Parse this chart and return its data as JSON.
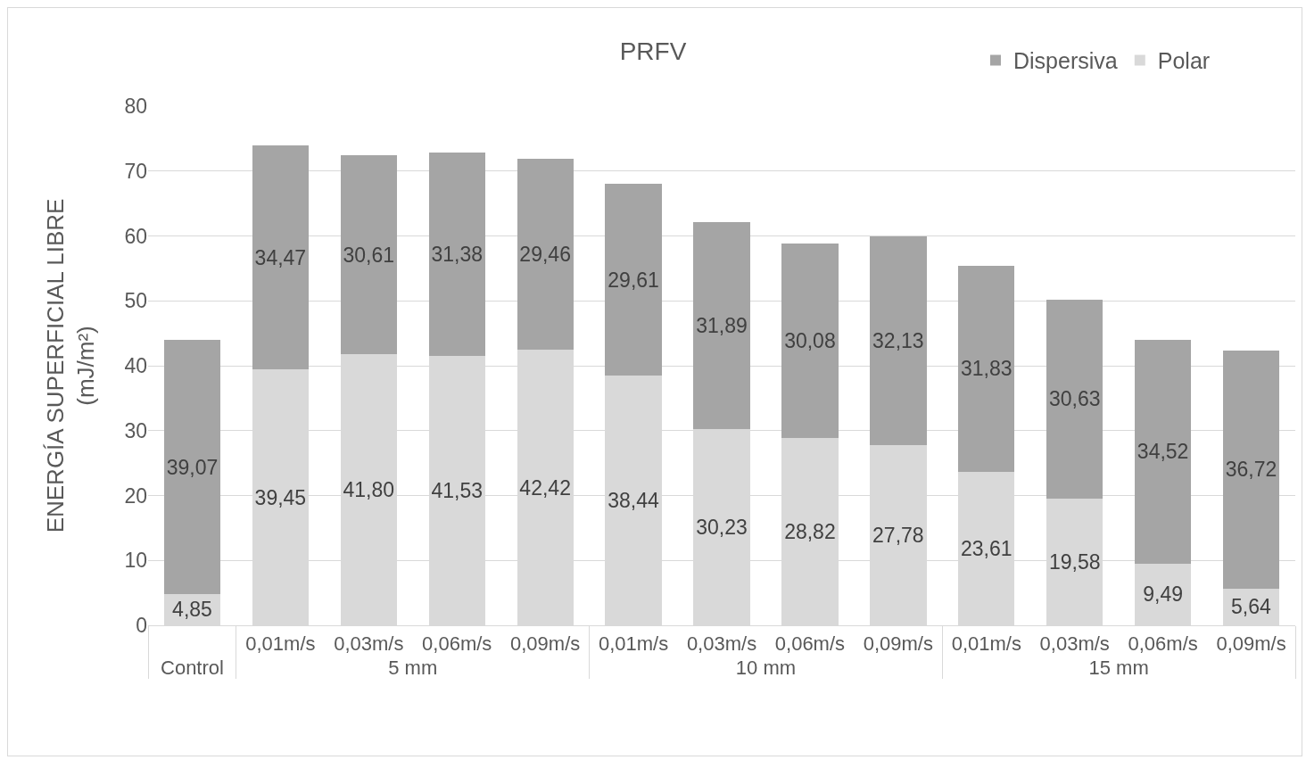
{
  "chart_data": {
    "type": "bar",
    "title": "PRFV",
    "ylabel": "ENERGÍA SUPERFICIAL LIBRE\n(mJ/m²)",
    "categories": [
      "Control",
      "0,01m/s",
      "0,03m/s",
      "0,06m/s",
      "0,09m/s",
      "0,01m/s",
      "0,03m/s",
      "0,06m/s",
      "0,09m/s",
      "0,01m/s",
      "0,03m/s",
      "0,06m/s",
      "0,09m/s"
    ],
    "annotations": [
      "5 mm",
      "10 mm",
      "15 mm"
    ],
    "series": [
      {
        "name": "Polar",
        "color": "#d9d9d9",
        "values": [
          4.85,
          39.45,
          41.8,
          41.53,
          42.42,
          38.44,
          30.23,
          28.82,
          27.78,
          23.61,
          19.58,
          9.49,
          5.64
        ],
        "value_labels": [
          "4,85",
          "39,45",
          "41,80",
          "41,53",
          "42,42",
          "38,44",
          "30,23",
          "28,82",
          "27,78",
          "23,61",
          "19,58",
          "9,49",
          "5,64"
        ]
      },
      {
        "name": "Dispersiva",
        "color": "#a5a5a5",
        "values": [
          39.07,
          34.47,
          30.61,
          31.38,
          29.46,
          29.61,
          31.89,
          30.08,
          32.13,
          31.83,
          30.63,
          34.52,
          36.72
        ],
        "value_labels": [
          "39,07",
          "34,47",
          "30,61",
          "31,38",
          "29,46",
          "29,61",
          "31,89",
          "30,08",
          "32,13",
          "31,83",
          "30,63",
          "34,52",
          "36,72"
        ]
      }
    ],
    "stacked": true,
    "ylim": [
      0,
      80
    ],
    "yticks": [
      0,
      10,
      20,
      30,
      40,
      50,
      60,
      70,
      80
    ],
    "grid": "y",
    "legend": "top right"
  }
}
